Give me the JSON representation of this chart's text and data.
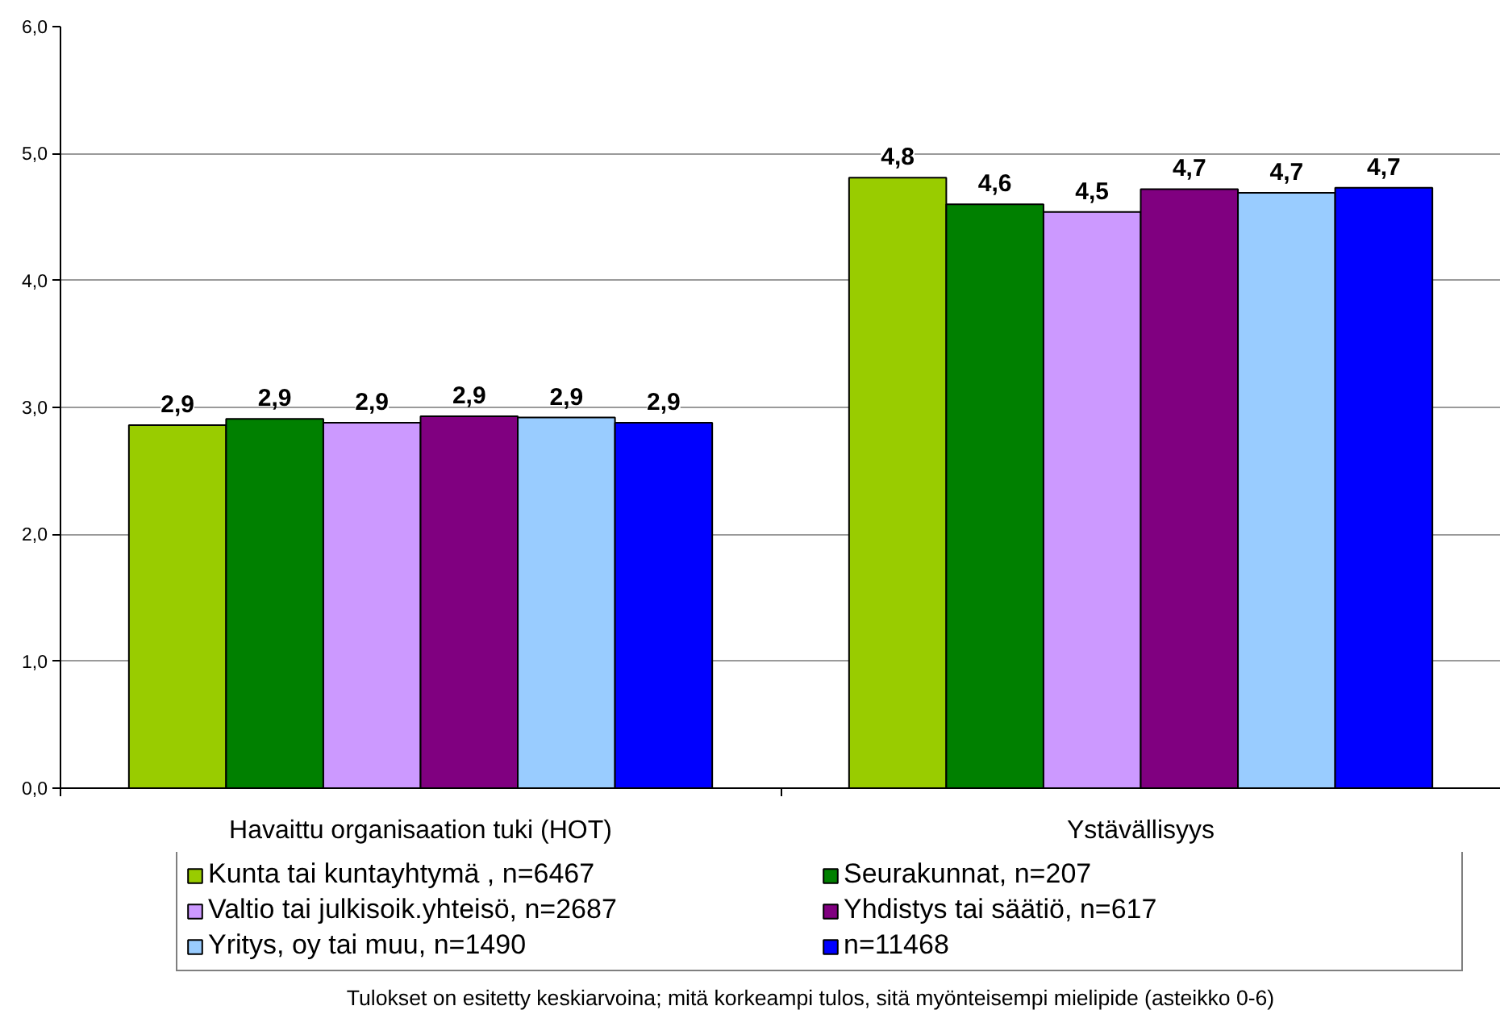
{
  "chart_data": {
    "type": "bar",
    "categories": [
      "Havaittu organisaation tuki (HOT)",
      "Ystävällisyys"
    ],
    "series": [
      {
        "name": "Kunta tai kuntayhtymä , n=6467",
        "color": "#99cc00",
        "values": [
          2.86,
          4.81
        ],
        "value_labels": [
          "2,9",
          "4,8"
        ]
      },
      {
        "name": "Seurakunnat, n=207",
        "color": "#008000",
        "values": [
          2.91,
          4.6
        ],
        "value_labels": [
          "2,9",
          "4,6"
        ]
      },
      {
        "name": "Valtio tai julkisoik.yhteisö, n=2687",
        "color": "#cc99ff",
        "values": [
          2.88,
          4.54
        ],
        "value_labels": [
          "2,9",
          "4,5"
        ]
      },
      {
        "name": "Yhdistys tai säätiö, n=617",
        "color": "#800080",
        "values": [
          2.93,
          4.72
        ],
        "value_labels": [
          "2,9",
          "4,7"
        ]
      },
      {
        "name": "Yritys, oy tai muu, n=1490",
        "color": "#99ccff",
        "values": [
          2.92,
          4.69
        ],
        "value_labels": [
          "2,9",
          "4,7"
        ]
      },
      {
        "name": "n=11468",
        "color": "#0000ff",
        "values": [
          2.88,
          4.73
        ],
        "value_labels": [
          "2,9",
          "4,7"
        ]
      }
    ],
    "ylim": [
      0,
      6
    ],
    "yticks": [
      {
        "value": 0,
        "label": "0,0"
      },
      {
        "value": 1,
        "label": "1,0"
      },
      {
        "value": 2,
        "label": "2,0"
      },
      {
        "value": 3,
        "label": "3,0"
      },
      {
        "value": 4,
        "label": "4,0"
      },
      {
        "value": 5,
        "label": "5,0"
      },
      {
        "value": 6,
        "label": "6,0"
      }
    ],
    "grid": "y",
    "legend": "bottom",
    "annotations": [
      "Tulokset on esitetty keskiarvoina; mitä korkeampi tulos, sitä myönteisempi mielipide (asteikko 0-6)"
    ]
  }
}
